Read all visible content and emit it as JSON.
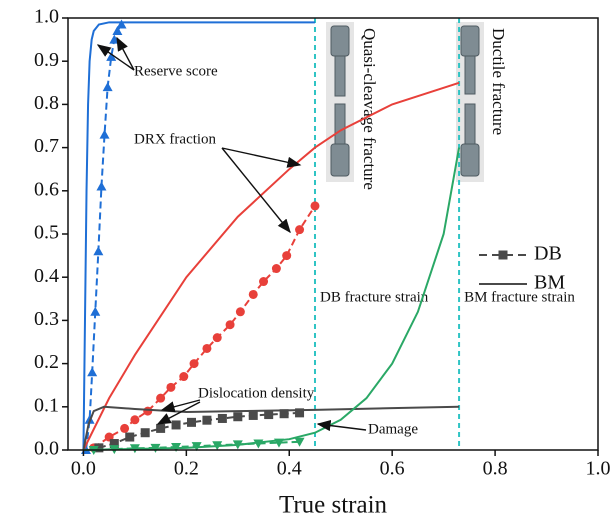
{
  "chart_data": {
    "type": "line",
    "xlabel": "True strain",
    "xlim": [
      -0.03,
      1.0
    ],
    "xticks": [
      {
        "value": 0.0,
        "label": "0.0"
      },
      0.2,
      0.4,
      0.6,
      0.8,
      {
        "value": 1.0,
        "label": "1.0"
      }
    ],
    "ylim": [
      0,
      1
    ],
    "yticks": [
      {
        "value": 0.0,
        "label": "0.0"
      },
      0.1,
      0.2,
      0.3,
      0.4,
      0.5,
      0.6,
      0.7,
      0.8,
      0.9,
      {
        "value": 1.0,
        "label": "1.0"
      }
    ],
    "legend": [
      "DB",
      "BM"
    ],
    "series": [
      {
        "color": "#1f6fd6",
        "dashed": true,
        "marker": "triangle-up",
        "x": [
          0.005,
          0.012,
          0.017,
          0.023,
          0.029,
          0.035,
          0.041,
          0.047,
          0.054,
          0.06,
          0.066,
          0.074
        ],
        "values": [
          0,
          0.07,
          0.18,
          0.32,
          0.46,
          0.61,
          0.73,
          0.84,
          0.91,
          0.95,
          0.97,
          0.985
        ]
      },
      {
        "color": "#1f6fd6",
        "dashed": false,
        "marker": "none",
        "x": [
          0,
          0.003,
          0.006,
          0.009,
          0.012,
          0.016,
          0.02,
          0.03,
          0.05,
          0.1,
          0.2,
          0.3,
          0.45
        ],
        "values": [
          0,
          0.3,
          0.6,
          0.8,
          0.9,
          0.95,
          0.97,
          0.985,
          0.99,
          0.99,
          0.99,
          0.99,
          0.99
        ]
      },
      {
        "color": "#e8403a",
        "dashed": true,
        "marker": "circle",
        "x": [
          0.02,
          0.05,
          0.08,
          0.1,
          0.125,
          0.15,
          0.17,
          0.195,
          0.215,
          0.24,
          0.26,
          0.285,
          0.305,
          0.33,
          0.35,
          0.375,
          0.395,
          0.42,
          0.45
        ],
        "values": [
          0.005,
          0.03,
          0.05,
          0.07,
          0.09,
          0.12,
          0.145,
          0.17,
          0.2,
          0.235,
          0.26,
          0.29,
          0.32,
          0.36,
          0.39,
          0.42,
          0.45,
          0.51,
          0.565
        ]
      },
      {
        "color": "#e8403a",
        "dashed": false,
        "marker": "none",
        "x": [
          0,
          0.05,
          0.1,
          0.2,
          0.3,
          0.4,
          0.45,
          0.5,
          0.6,
          0.73
        ],
        "values": [
          0,
          0.12,
          0.22,
          0.4,
          0.54,
          0.65,
          0.7,
          0.74,
          0.8,
          0.85
        ]
      },
      {
        "color": "#4a4a4a",
        "dashed": true,
        "marker": "square",
        "x": [
          0.03,
          0.06,
          0.09,
          0.12,
          0.15,
          0.18,
          0.21,
          0.24,
          0.27,
          0.3,
          0.33,
          0.36,
          0.39,
          0.42
        ],
        "values": [
          0.005,
          0.015,
          0.03,
          0.04,
          0.05,
          0.058,
          0.064,
          0.069,
          0.073,
          0.077,
          0.08,
          0.082,
          0.084,
          0.086
        ]
      },
      {
        "color": "#4a4a4a",
        "dashed": false,
        "marker": "none",
        "x": [
          0,
          0.01,
          0.02,
          0.04,
          0.1,
          0.2,
          0.3,
          0.45,
          0.6,
          0.73
        ],
        "values": [
          0,
          0.06,
          0.09,
          0.1,
          0.095,
          0.088,
          0.09,
          0.093,
          0.097,
          0.1
        ]
      },
      {
        "color": "#2aa866",
        "dashed": true,
        "marker": "triangle-down",
        "x": [
          0.02,
          0.06,
          0.1,
          0.14,
          0.18,
          0.22,
          0.26,
          0.3,
          0.34,
          0.38,
          0.42
        ],
        "values": [
          0,
          0.002,
          0.004,
          0.005,
          0.007,
          0.009,
          0.011,
          0.013,
          0.015,
          0.017,
          0.019
        ]
      },
      {
        "color": "#2aa866",
        "dashed": false,
        "marker": "none",
        "x": [
          0,
          0.2,
          0.3,
          0.4,
          0.45,
          0.5,
          0.55,
          0.6,
          0.65,
          0.7,
          0.73
        ],
        "values": [
          0,
          0.005,
          0.012,
          0.025,
          0.04,
          0.07,
          0.12,
          0.2,
          0.32,
          0.5,
          0.7
        ]
      }
    ],
    "vlines": [
      {
        "x": 0.45,
        "label": "DB fracture strain"
      },
      {
        "x": 0.73,
        "label": "BM fracture strain"
      }
    ],
    "vline_color": "#2fc4c4",
    "fracture_labels": [
      "Quasi-cleavage fracture",
      "Ductile fracture"
    ],
    "annotations": [
      "Reserve score",
      "DRX fraction",
      "Dislocation density",
      "Damage"
    ]
  }
}
